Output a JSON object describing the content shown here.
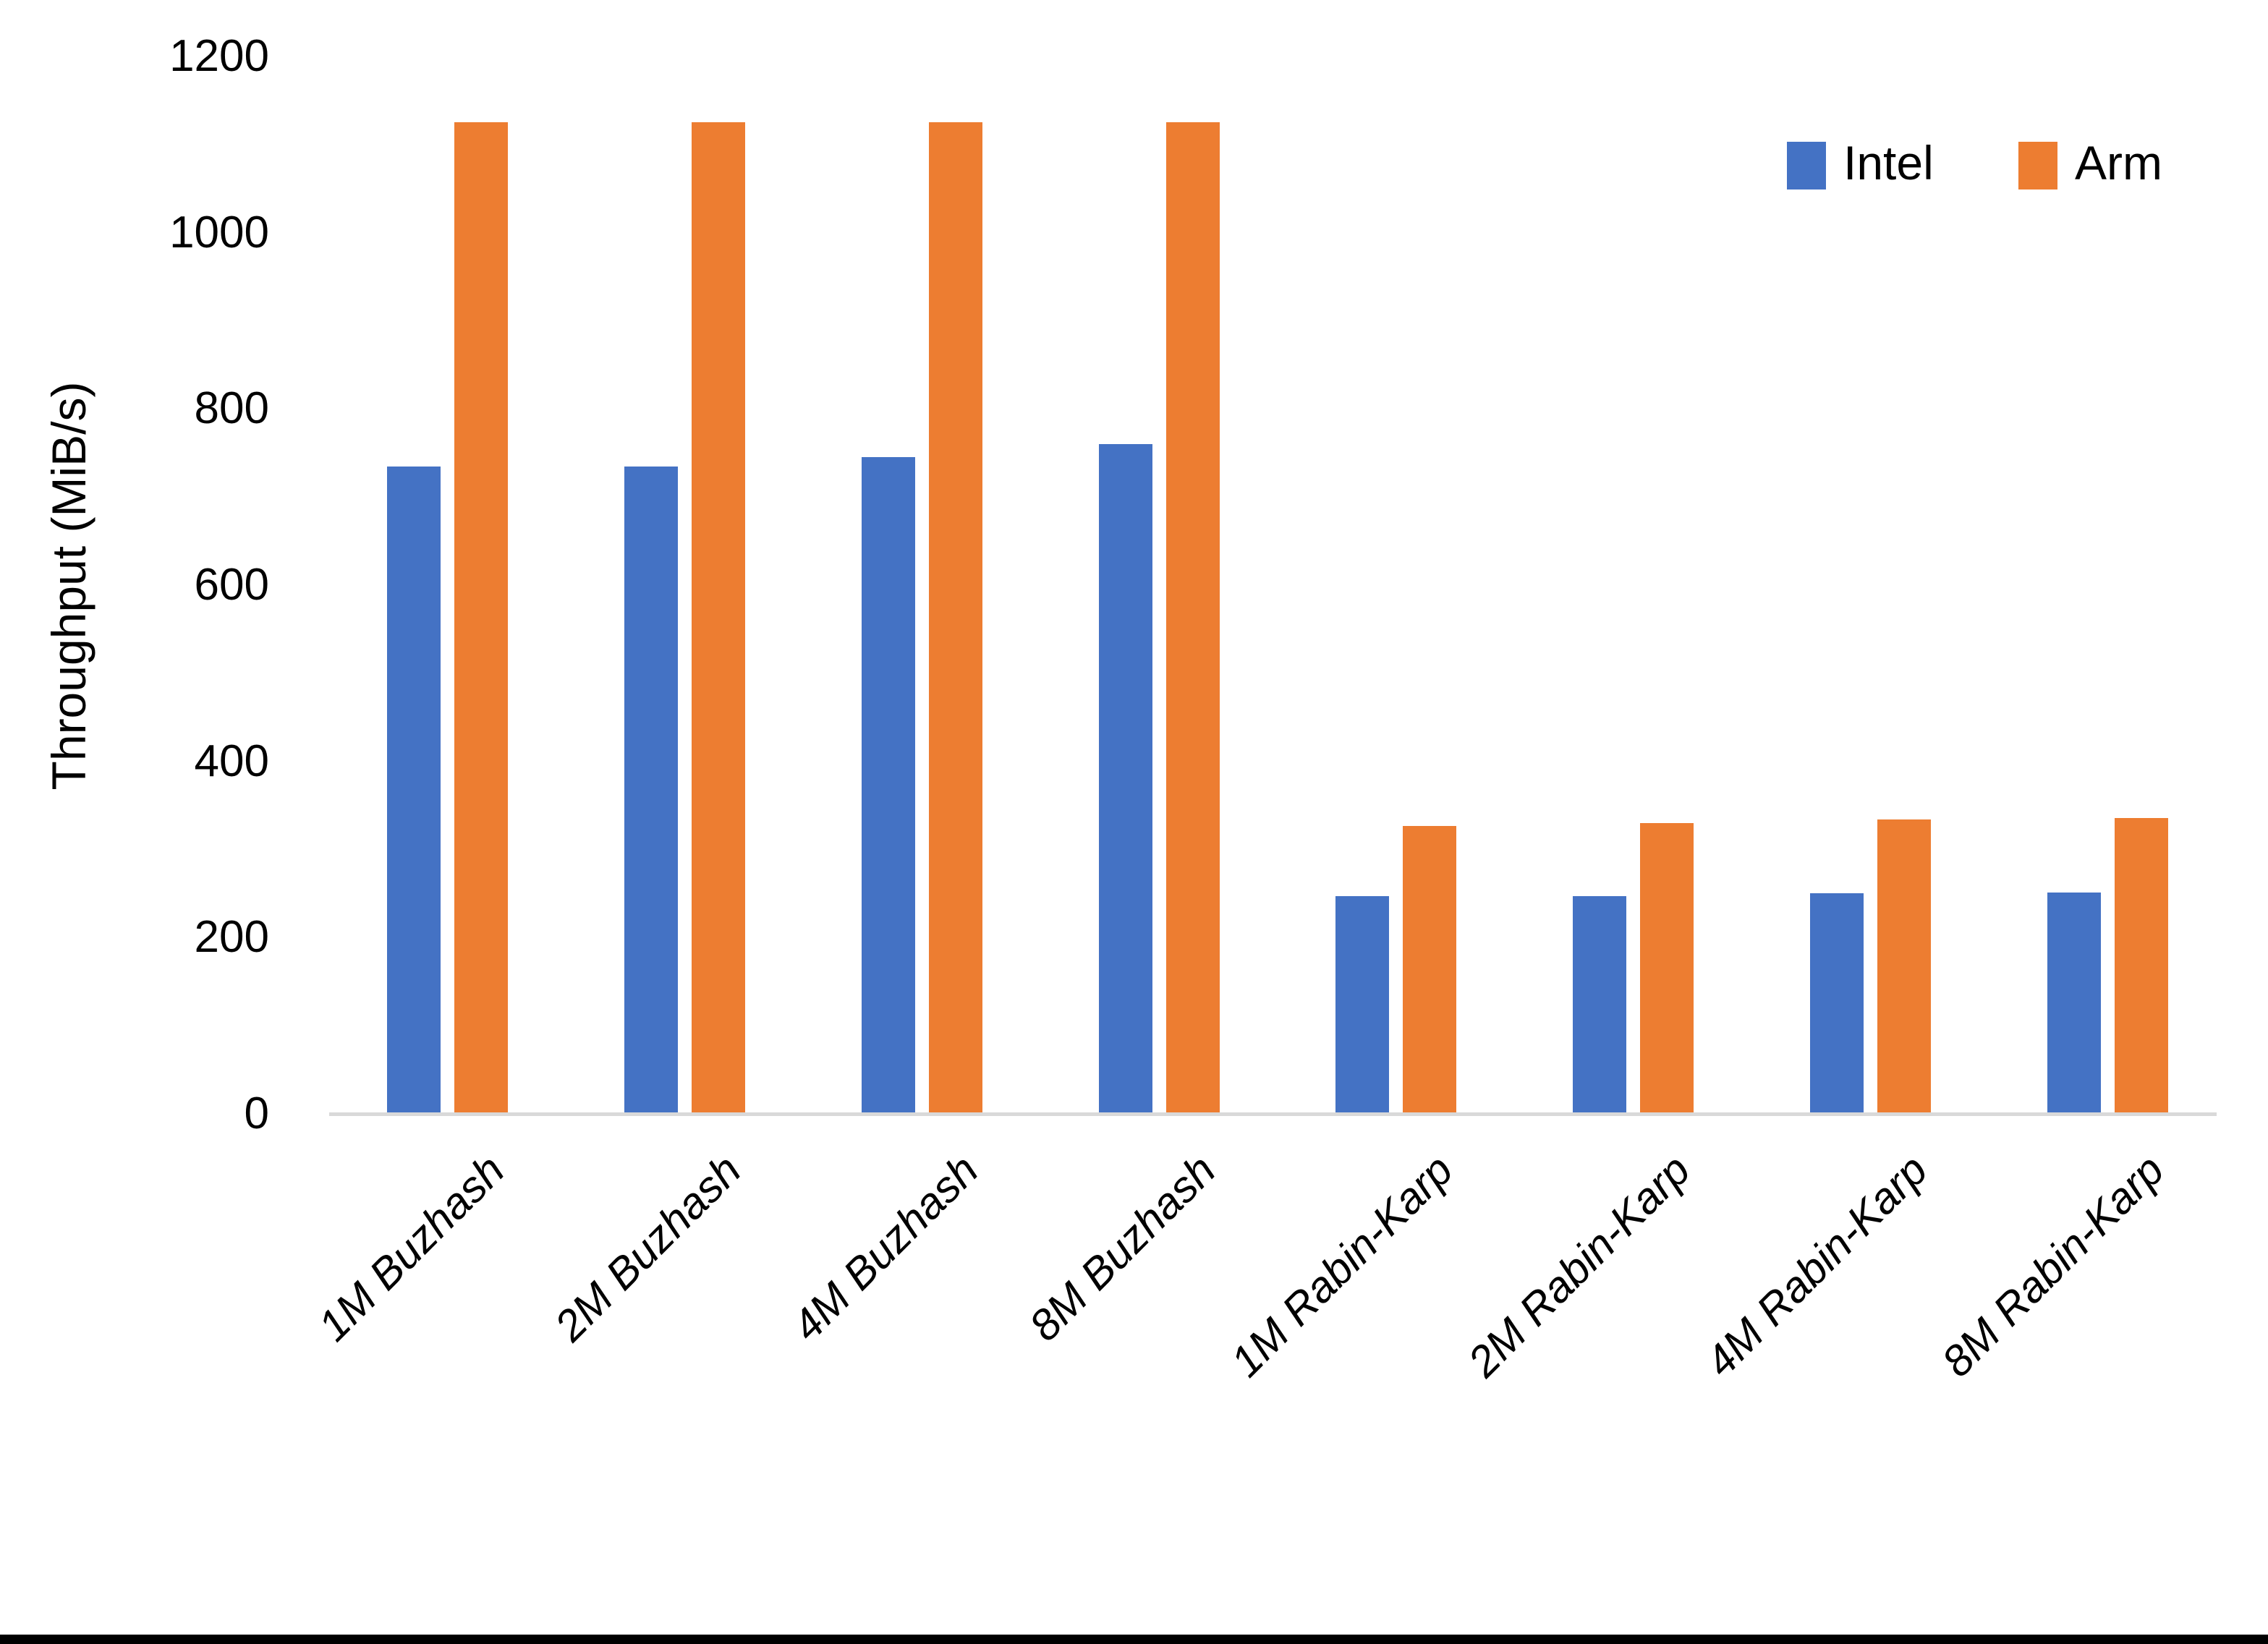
{
  "chart_data": {
    "type": "bar",
    "title": "",
    "xlabel": "",
    "ylabel": "Throughput (MiB/s)",
    "categories": [
      "1M Buzhash",
      "2M Buzhash",
      "4M Buzhash",
      "8M Buzhash",
      "1M Rabin-Karp",
      "2M Rabin-Karp",
      "4M Rabin-Karp",
      "8M Rabin-Karp"
    ],
    "series": [
      {
        "name": "Intel",
        "color": "#4472C4",
        "values": [
          735,
          735,
          745,
          760,
          247,
          247,
          250,
          251
        ]
      },
      {
        "name": "Arm",
        "color": "#ED7D31",
        "values": [
          1125,
          1125,
          1125,
          1125,
          327,
          330,
          334,
          336
        ]
      }
    ],
    "ylim": [
      0,
      1200
    ],
    "yticks": [
      0,
      200,
      400,
      600,
      800,
      1000,
      1200
    ],
    "grid": false,
    "legend_position": "top-right",
    "axis_line_color": "#D9D9D9",
    "text_color": "#000000"
  }
}
